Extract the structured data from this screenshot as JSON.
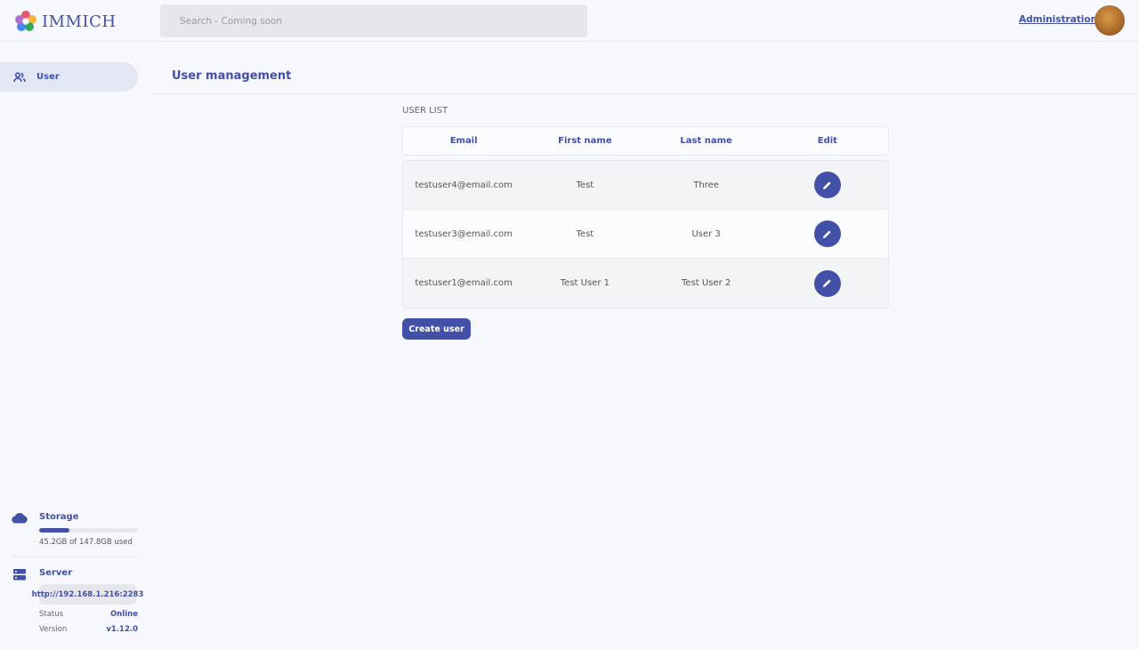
{
  "header": {
    "logo_text": "IMMICH",
    "search_placeholder": "Search - Coming soon",
    "admin_link": "Administration"
  },
  "sidebar": {
    "items": [
      {
        "label": "User",
        "icon": "users-icon"
      }
    ],
    "storage": {
      "title": "Storage",
      "used_text": "45.2GB of 147.8GB used",
      "used_percent": 30.6
    },
    "server": {
      "title": "Server",
      "url": "http://192.168.1.216:2283",
      "status_label": "Status",
      "status": "Online",
      "version_label": "Version",
      "version": "v1.12.0"
    }
  },
  "main": {
    "title": "User management",
    "list_label": "USER LIST",
    "columns": [
      "Email",
      "First name",
      "Last name",
      "Edit"
    ],
    "rows": [
      {
        "email": "testuser4@email.com",
        "first": "Test",
        "last": "Three"
      },
      {
        "email": "testuser3@email.com",
        "first": "Test",
        "last": "User 3"
      },
      {
        "email": "testuser1@email.com",
        "first": "Test User 1",
        "last": "Test User 2"
      }
    ],
    "create_button": "Create user"
  },
  "colors": {
    "accent": "#4250a8",
    "background": "#f6f8fe"
  }
}
